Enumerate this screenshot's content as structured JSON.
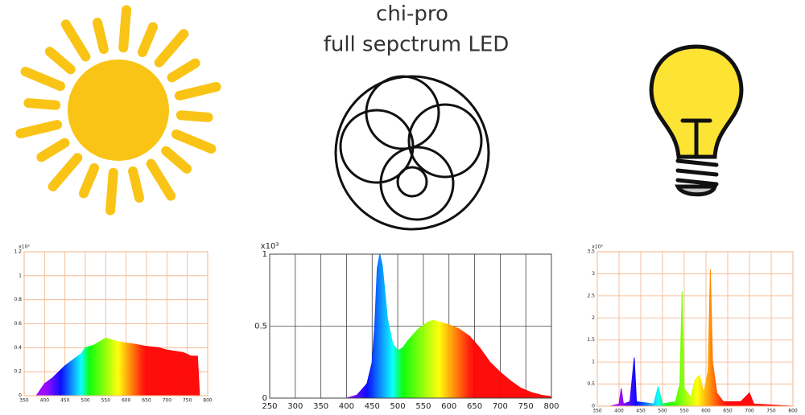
{
  "title": [
    "chi-pro",
    "full sepctrum LED"
  ],
  "chart_data": [
    {
      "type": "area",
      "ylabel": "x10³",
      "grid_color": "#f4b183",
      "x": [
        380,
        400,
        420,
        450,
        470,
        490,
        500,
        520,
        540,
        550,
        560,
        580,
        600,
        620,
        650,
        680,
        700,
        720,
        740,
        760,
        775,
        780
      ],
      "values": [
        0,
        0.1,
        0.15,
        0.25,
        0.3,
        0.35,
        0.4,
        0.42,
        0.46,
        0.48,
        0.47,
        0.45,
        0.44,
        0.43,
        0.41,
        0.4,
        0.38,
        0.37,
        0.36,
        0.33,
        0.33,
        0
      ],
      "xlim": [
        350,
        800
      ],
      "xticks": [
        350,
        400,
        450,
        500,
        550,
        600,
        650,
        700,
        750,
        800
      ],
      "ylim": [
        0,
        1.2
      ],
      "yticks": [
        0,
        0.2,
        0.4,
        0.6,
        0.8,
        1,
        1.2
      ]
    },
    {
      "type": "area",
      "ylabel": "x10³",
      "grid_color": "#444444",
      "x": [
        400,
        420,
        440,
        450,
        455,
        460,
        465,
        470,
        480,
        490,
        500,
        510,
        520,
        540,
        560,
        570,
        580,
        600,
        620,
        640,
        660,
        680,
        700,
        720,
        740,
        760,
        780,
        800
      ],
      "values": [
        0,
        0.02,
        0.1,
        0.25,
        0.5,
        0.9,
        1.0,
        0.92,
        0.55,
        0.38,
        0.33,
        0.35,
        0.4,
        0.48,
        0.53,
        0.54,
        0.53,
        0.51,
        0.48,
        0.43,
        0.35,
        0.25,
        0.18,
        0.12,
        0.07,
        0.04,
        0.02,
        0.01
      ],
      "xlim": [
        250,
        800
      ],
      "xticks": [
        250,
        300,
        350,
        400,
        450,
        500,
        550,
        600,
        650,
        700,
        750,
        800
      ],
      "ylim": [
        0,
        1
      ],
      "yticks": [
        0,
        0.5,
        1
      ]
    },
    {
      "type": "area",
      "ylabel": "x10³",
      "grid_color": "#f4b183",
      "x": [
        380,
        400,
        405,
        410,
        425,
        435,
        440,
        480,
        490,
        500,
        530,
        540,
        545,
        550,
        565,
        575,
        585,
        595,
        605,
        610,
        615,
        625,
        640,
        680,
        700,
        710,
        760,
        800
      ],
      "values": [
        0,
        0.05,
        0.4,
        0.05,
        0.1,
        1.1,
        0.1,
        0.05,
        0.45,
        0.05,
        0.1,
        0.5,
        2.6,
        0.4,
        0.2,
        0.6,
        0.7,
        0.3,
        0.8,
        3.1,
        1.0,
        0.3,
        0.1,
        0.1,
        0.3,
        0.05,
        0.02,
        0
      ],
      "xlim": [
        350,
        800
      ],
      "xticks": [
        350,
        400,
        450,
        500,
        550,
        600,
        650,
        700,
        750,
        800
      ],
      "ylim": [
        0,
        3.5
      ],
      "yticks": [
        0,
        0.5,
        1,
        1.5,
        2,
        2.5,
        3,
        3.5
      ]
    }
  ]
}
